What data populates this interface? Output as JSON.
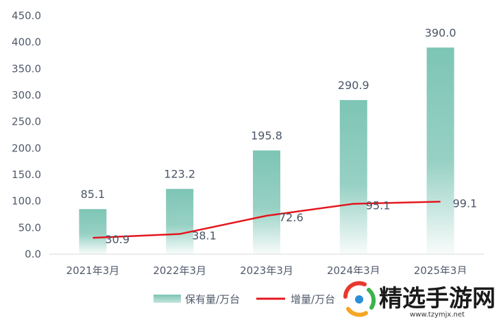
{
  "chart_data": {
    "type": "bar",
    "categories": [
      "2021年3月",
      "2022年3月",
      "2023年3月",
      "2024年3月",
      "2025年3月"
    ],
    "series": [
      {
        "name": "保有量/万台",
        "kind": "bar",
        "color": "#7dc5b5",
        "values": [
          85.1,
          123.2,
          195.8,
          290.9,
          390.0
        ]
      },
      {
        "name": "增量/万台",
        "kind": "line",
        "color": "#e3161c",
        "values": [
          30.9,
          38.1,
          72.6,
          95.1,
          99.1
        ]
      }
    ],
    "ylim": [
      0,
      450
    ],
    "yticks": [
      "0.0",
      "50.0",
      "100.0",
      "150.0",
      "200.0",
      "250.0",
      "300.0",
      "350.0",
      "400.0",
      "450.0"
    ],
    "bar_labels": [
      "85.1",
      "123.2",
      "195.8",
      "290.9",
      "390.0"
    ],
    "line_labels": [
      "30.9",
      "38.1",
      "72.6",
      "95.1",
      "99.1"
    ],
    "grid": false,
    "legend_position": "bottom"
  },
  "watermark": {
    "title": "精选手游网",
    "url": "www.tzymjx.net",
    "logo_colors": [
      "#e8382d",
      "#3bb34a",
      "#f5a623",
      "#2a8fd8"
    ]
  }
}
